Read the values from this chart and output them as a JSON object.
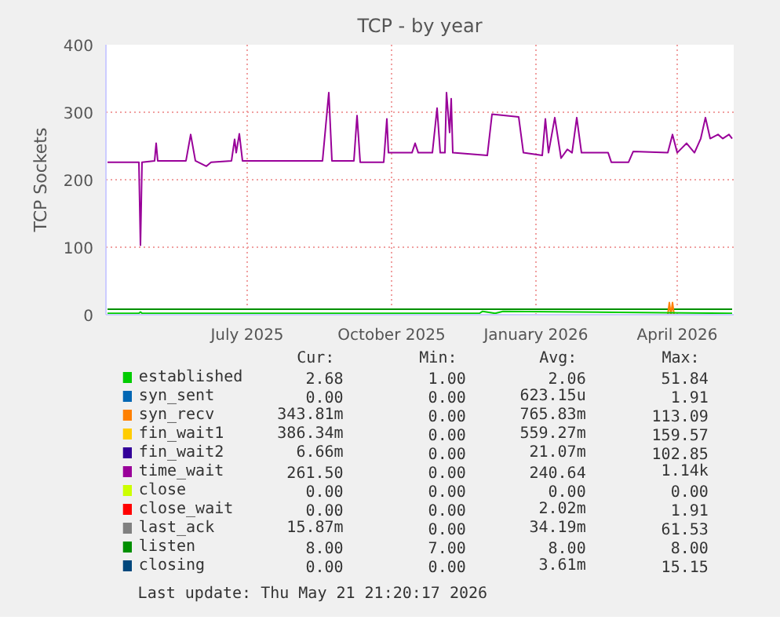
{
  "chart_data": {
    "type": "line",
    "title": "TCP - by year",
    "ylabel": "TCP Sockets",
    "xlim": [
      "2025-04-16",
      "2026-05-21"
    ],
    "ylim": [
      0,
      400
    ],
    "yticks": [
      0,
      100,
      200,
      300,
      400
    ],
    "xticks": [
      {
        "value": "2025-07-15",
        "label": "July 2025"
      },
      {
        "value": "2025-10-15",
        "label": "October 2025"
      },
      {
        "value": "2026-01-15",
        "label": "January 2026"
      },
      {
        "value": "2026-04-15",
        "label": "April 2026"
      }
    ],
    "grid": true,
    "legend": "bottom",
    "series": [
      {
        "name": "established",
        "color": "#00cc00",
        "x": [
          "2025-04-17",
          "2025-05-07",
          "2025-05-08",
          "2025-05-09",
          "2025-12-10",
          "2025-12-12",
          "2025-12-20",
          "2025-12-25",
          "2026-05-20"
        ],
        "values": [
          2,
          2,
          4,
          2,
          2,
          5,
          2,
          5,
          2
        ]
      },
      {
        "name": "syn_sent",
        "color": "#0066b3"
      },
      {
        "name": "syn_recv",
        "color": "#ff8000",
        "x": [
          "2026-04-09",
          "2026-04-10",
          "2026-04-11",
          "2026-04-12",
          "2026-04-13"
        ],
        "values": [
          0,
          18,
          0,
          18,
          0
        ]
      },
      {
        "name": "fin_wait1",
        "color": "#ffcc00"
      },
      {
        "name": "fin_wait2",
        "color": "#330099"
      },
      {
        "name": "time_wait",
        "color": "#990099",
        "x": [
          "2025-04-17",
          "2025-04-29",
          "2025-05-07",
          "2025-05-08",
          "2025-05-09",
          "2025-05-17",
          "2025-05-18",
          "2025-05-19",
          "2025-06-06",
          "2025-06-09",
          "2025-06-12",
          "2025-06-19",
          "2025-06-22",
          "2025-07-05",
          "2025-07-07",
          "2025-07-08",
          "2025-07-10",
          "2025-07-12",
          "2025-09-01",
          "2025-09-05",
          "2025-09-07",
          "2025-09-21",
          "2025-09-23",
          "2025-09-25",
          "2025-10-10",
          "2025-10-12",
          "2025-10-13",
          "2025-10-28",
          "2025-10-30",
          "2025-11-01",
          "2025-11-10",
          "2025-11-13",
          "2025-11-15",
          "2025-11-18",
          "2025-11-19",
          "2025-11-21",
          "2025-11-22",
          "2025-11-23",
          "2025-12-15",
          "2025-12-18",
          "2026-01-04",
          "2026-01-07",
          "2026-01-19",
          "2026-01-21",
          "2026-01-23",
          "2026-01-27",
          "2026-01-31",
          "2026-02-04",
          "2026-02-07",
          "2026-02-10",
          "2026-02-13",
          "2026-03-02",
          "2026-03-04",
          "2026-03-15",
          "2026-03-18",
          "2026-04-09",
          "2026-04-12",
          "2026-04-15",
          "2026-04-21",
          "2026-04-26",
          "2026-04-30",
          "2026-05-03",
          "2026-05-06",
          "2026-05-11",
          "2026-05-14",
          "2026-05-18",
          "2026-05-20"
        ],
        "values": [
          226,
          226,
          226,
          103,
          226,
          228,
          254,
          228,
          228,
          267,
          228,
          220,
          226,
          228,
          260,
          240,
          268,
          228,
          228,
          329,
          228,
          228,
          295,
          226,
          226,
          290,
          240,
          240,
          254,
          240,
          240,
          306,
          240,
          240,
          329,
          270,
          320,
          240,
          236,
          297,
          293,
          240,
          236,
          290,
          240,
          292,
          232,
          245,
          240,
          292,
          240,
          240,
          226,
          226,
          242,
          240,
          267,
          240,
          254,
          240,
          261,
          292,
          261,
          267,
          261,
          267,
          261
        ]
      },
      {
        "name": "close",
        "color": "#ccff00"
      },
      {
        "name": "close_wait",
        "color": "#ff0000"
      },
      {
        "name": "last_ack",
        "color": "#808080"
      },
      {
        "name": "listen",
        "color": "#008f00",
        "x": [
          "2025-04-17",
          "2026-05-20"
        ],
        "values": [
          8,
          8
        ]
      },
      {
        "name": "closing",
        "color": "#00487d"
      }
    ],
    "annotations": [
      "Cur:",
      "Min:",
      "Avg:",
      "Max:",
      "2.68",
      "1.00",
      "2.06",
      "51.84",
      "0.00",
      "0.00",
      "623.15u",
      "1.91",
      "343.81m",
      "0.00",
      "765.83m",
      "113.09",
      "386.34m",
      "0.00",
      "559.27m",
      "159.57",
      "6.66m",
      "0.00",
      "21.07m",
      "102.85",
      "261.50",
      "0.00",
      "240.64",
      "1.14k",
      "0.00",
      "0.00",
      "0.00",
      "0.00",
      "0.00",
      "0.00",
      "2.02m",
      "1.91",
      "15.87m",
      "0.00",
      "34.19m",
      "61.53",
      "8.00",
      "7.00",
      "8.00",
      "8.00",
      "0.00",
      "0.00",
      "3.61m",
      "15.15",
      "Last update: Thu May 21 21:20:17 2026"
    ]
  }
}
